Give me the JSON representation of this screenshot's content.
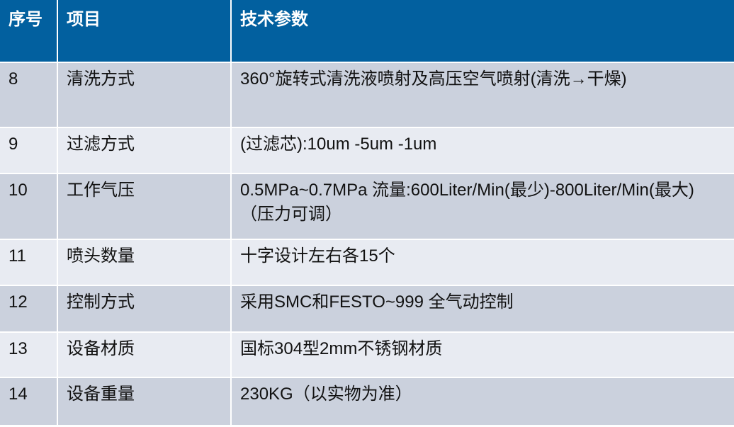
{
  "header": {
    "col_no": "序号",
    "col_item": "项目",
    "col_params": "技术参数"
  },
  "colors": {
    "header_bg": "#02609f",
    "row_dark": "#cbd1dd",
    "row_light": "#e8ebf2"
  },
  "rows": [
    {
      "no": "8",
      "item": "清洗方式",
      "param": "360°旋转式清洗液喷射及高压空气喷射(清洗→干燥)"
    },
    {
      "no": "9",
      "item": "过滤方式",
      "param": "(过滤芯):10um -5um -1um"
    },
    {
      "no": "10",
      "item": "工作气压",
      "param": "0.5MPa~0.7MPa 流量:600Liter/Min(最少)-800Liter/Min(最大)（压力可调）"
    },
    {
      "no": "11",
      "item": "喷头数量",
      "param": "十字设计左右各15个"
    },
    {
      "no": "12",
      "item": "控制方式",
      "param": "采用SMC和FESTO~999 全气动控制"
    },
    {
      "no": "13",
      "item": "设备材质",
      "param": "国标304型2mm不锈钢材质"
    },
    {
      "no": "14",
      "item": "设备重量",
      "param": "230KG（以实物为准）"
    }
  ]
}
